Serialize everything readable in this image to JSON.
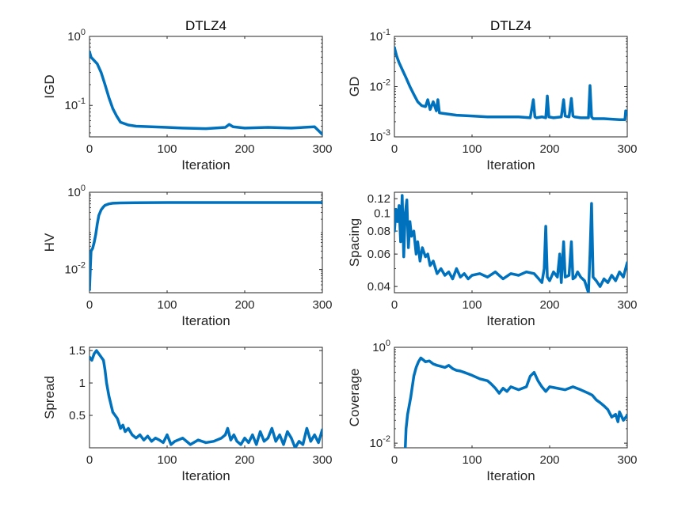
{
  "chart_data": [
    {
      "type": "line",
      "title": "DTLZ4",
      "xlabel": "Iteration",
      "ylabel": "IGD",
      "yscale": "log",
      "xlim": [
        0,
        300
      ],
      "ylim": [
        0.035,
        1.0
      ],
      "x_ticks": [
        0,
        100,
        200,
        300
      ],
      "x_tick_labels": [
        "0",
        "100",
        "200",
        "300"
      ],
      "y_ticks": [
        1.0,
        0.1
      ],
      "y_tick_labels": [
        {
          "base": "10",
          "exp": "0"
        },
        {
          "base": "10",
          "exp": "-1"
        }
      ],
      "line_color": "#0072BD",
      "series": [
        {
          "name": "IGD",
          "x": [
            0,
            2,
            5,
            10,
            15,
            20,
            25,
            30,
            35,
            40,
            50,
            60,
            80,
            100,
            120,
            150,
            175,
            180,
            185,
            200,
            230,
            260,
            290,
            300
          ],
          "values": [
            0.6,
            0.5,
            0.46,
            0.4,
            0.3,
            0.2,
            0.13,
            0.09,
            0.07,
            0.057,
            0.052,
            0.05,
            0.049,
            0.048,
            0.047,
            0.046,
            0.048,
            0.053,
            0.049,
            0.047,
            0.048,
            0.047,
            0.049,
            0.038
          ]
        }
      ]
    },
    {
      "type": "line",
      "title": "DTLZ4",
      "xlabel": "Iteration",
      "ylabel": "GD",
      "yscale": "log",
      "xlim": [
        0,
        300
      ],
      "ylim": [
        0.001,
        0.1
      ],
      "x_ticks": [
        0,
        100,
        200,
        300
      ],
      "x_tick_labels": [
        "0",
        "100",
        "200",
        "300"
      ],
      "y_ticks": [
        0.1,
        0.01,
        0.001
      ],
      "y_tick_labels": [
        {
          "base": "10",
          "exp": "-1"
        },
        {
          "base": "10",
          "exp": "-2"
        },
        {
          "base": "10",
          "exp": "-3"
        }
      ],
      "line_color": "#0072BD",
      "series": [
        {
          "name": "GD",
          "x": [
            0,
            3,
            6,
            10,
            15,
            20,
            25,
            30,
            35,
            40,
            43,
            46,
            50,
            54,
            56,
            58,
            65,
            80,
            100,
            120,
            140,
            160,
            175,
            179,
            181,
            183,
            190,
            195,
            197,
            199,
            205,
            215,
            218,
            220,
            225,
            228,
            230,
            232,
            240,
            250,
            252,
            254,
            256,
            270,
            290,
            297,
            298,
            300
          ],
          "values": [
            0.06,
            0.04,
            0.03,
            0.022,
            0.015,
            0.01,
            0.007,
            0.005,
            0.0042,
            0.004,
            0.0055,
            0.0035,
            0.005,
            0.0033,
            0.0055,
            0.003,
            0.0029,
            0.0027,
            0.0026,
            0.0025,
            0.0025,
            0.0025,
            0.0024,
            0.0055,
            0.0025,
            0.0024,
            0.0025,
            0.0024,
            0.0065,
            0.0025,
            0.0024,
            0.0025,
            0.0055,
            0.0026,
            0.0025,
            0.0058,
            0.0026,
            0.0025,
            0.0024,
            0.0024,
            0.0105,
            0.0025,
            0.0023,
            0.0023,
            0.0022,
            0.0022,
            0.0033,
            0.0028
          ]
        }
      ]
    },
    {
      "type": "line",
      "title": "",
      "xlabel": "Iteration",
      "ylabel": "HV",
      "yscale": "log",
      "xlim": [
        0,
        300
      ],
      "ylim": [
        0.0025,
        1.0
      ],
      "x_ticks": [
        0,
        100,
        200,
        300
      ],
      "x_tick_labels": [
        "0",
        "100",
        "200",
        "300"
      ],
      "y_ticks": [
        1.0,
        0.01
      ],
      "y_tick_labels": [
        {
          "base": "10",
          "exp": "0"
        },
        {
          "base": "10",
          "exp": "-2"
        }
      ],
      "line_color": "#0072BD",
      "series": [
        {
          "name": "HV",
          "x": [
            0,
            1,
            2,
            4,
            6,
            8,
            10,
            12,
            15,
            18,
            20,
            25,
            30,
            40,
            60,
            100,
            150,
            200,
            250,
            300
          ],
          "values": [
            0.003,
            0.01,
            0.03,
            0.035,
            0.05,
            0.08,
            0.15,
            0.25,
            0.35,
            0.42,
            0.46,
            0.5,
            0.52,
            0.53,
            0.535,
            0.54,
            0.54,
            0.54,
            0.54,
            0.54
          ]
        }
      ]
    },
    {
      "type": "line",
      "title": "",
      "xlabel": "Iteration",
      "ylabel": "Spacing",
      "yscale": "log",
      "xlim": [
        0,
        300
      ],
      "ylim": [
        0.037,
        0.13
      ],
      "x_ticks": [
        0,
        100,
        200,
        300
      ],
      "x_tick_labels": [
        "0",
        "100",
        "200",
        "300"
      ],
      "y_ticks": [
        0.12,
        0.1,
        0.08,
        0.06,
        0.04
      ],
      "y_tick_labels": [
        "0.12",
        "0.1",
        "0.08",
        "0.06",
        "0.04"
      ],
      "line_color": "#0072BD",
      "series": [
        {
          "name": "Spacing",
          "x": [
            0,
            2,
            4,
            6,
            8,
            10,
            12,
            14,
            16,
            18,
            20,
            22,
            25,
            28,
            30,
            33,
            36,
            40,
            43,
            46,
            50,
            55,
            60,
            65,
            70,
            75,
            80,
            85,
            90,
            95,
            100,
            110,
            120,
            130,
            140,
            150,
            160,
            170,
            180,
            186,
            190,
            193,
            195,
            197,
            200,
            205,
            210,
            213,
            215,
            218,
            220,
            225,
            228,
            230,
            233,
            236,
            240,
            245,
            250,
            252,
            254,
            256,
            260,
            265,
            270,
            275,
            280,
            285,
            290,
            295,
            300
          ],
          "values": [
            0.08,
            0.105,
            0.09,
            0.11,
            0.07,
            0.125,
            0.058,
            0.1,
            0.118,
            0.065,
            0.09,
            0.075,
            0.08,
            0.06,
            0.07,
            0.055,
            0.065,
            0.058,
            0.06,
            0.052,
            0.055,
            0.047,
            0.05,
            0.046,
            0.048,
            0.044,
            0.05,
            0.045,
            0.047,
            0.044,
            0.046,
            0.047,
            0.045,
            0.048,
            0.044,
            0.047,
            0.046,
            0.048,
            0.047,
            0.044,
            0.042,
            0.05,
            0.085,
            0.045,
            0.043,
            0.048,
            0.045,
            0.06,
            0.042,
            0.07,
            0.045,
            0.046,
            0.07,
            0.044,
            0.045,
            0.048,
            0.045,
            0.043,
            0.037,
            0.06,
            0.113,
            0.045,
            0.043,
            0.04,
            0.044,
            0.042,
            0.046,
            0.043,
            0.048,
            0.045,
            0.054
          ]
        }
      ]
    },
    {
      "type": "line",
      "title": "",
      "xlabel": "Iteration",
      "ylabel": "Spread",
      "yscale": "linear",
      "xlim": [
        0,
        300
      ],
      "ylim": [
        0.0,
        1.55
      ],
      "x_ticks": [
        0,
        100,
        200,
        300
      ],
      "x_tick_labels": [
        "0",
        "100",
        "200",
        "300"
      ],
      "y_ticks": [
        1.5,
        1.0,
        0.5
      ],
      "y_tick_labels": [
        "1.5",
        "1",
        "0.5"
      ],
      "line_color": "#0072BD",
      "series": [
        {
          "name": "Spread",
          "x": [
            0,
            3,
            6,
            9,
            12,
            15,
            18,
            20,
            22,
            25,
            28,
            30,
            33,
            36,
            40,
            43,
            46,
            50,
            55,
            60,
            65,
            70,
            75,
            80,
            85,
            90,
            95,
            100,
            105,
            110,
            120,
            130,
            140,
            150,
            160,
            170,
            175,
            178,
            182,
            186,
            190,
            195,
            200,
            205,
            210,
            215,
            220,
            225,
            230,
            235,
            240,
            245,
            250,
            255,
            260,
            265,
            270,
            275,
            280,
            285,
            290,
            295,
            300
          ],
          "values": [
            1.4,
            1.35,
            1.45,
            1.5,
            1.45,
            1.4,
            1.35,
            1.2,
            1.0,
            0.8,
            0.65,
            0.55,
            0.5,
            0.45,
            0.3,
            0.35,
            0.25,
            0.3,
            0.2,
            0.15,
            0.2,
            0.12,
            0.18,
            0.1,
            0.15,
            0.12,
            0.08,
            0.2,
            0.05,
            0.1,
            0.15,
            0.05,
            0.12,
            0.08,
            0.1,
            0.15,
            0.2,
            0.3,
            0.12,
            0.2,
            0.1,
            0.05,
            0.15,
            0.08,
            0.2,
            0.05,
            0.25,
            0.1,
            0.15,
            0.3,
            0.1,
            0.2,
            0.05,
            0.25,
            0.15,
            0.0,
            0.1,
            0.05,
            0.3,
            0.1,
            0.2,
            0.08,
            0.28
          ]
        }
      ]
    },
    {
      "type": "line",
      "title": "",
      "xlabel": "Iteration",
      "ylabel": "Coverage",
      "yscale": "log",
      "xlim": [
        0,
        300
      ],
      "ylim": [
        0.008,
        1.0
      ],
      "x_ticks": [
        0,
        100,
        200,
        300
      ],
      "x_tick_labels": [
        "0",
        "100",
        "200",
        "300"
      ],
      "y_ticks": [
        1.0,
        0.01
      ],
      "y_tick_labels": [
        {
          "base": "10",
          "exp": "0"
        },
        {
          "base": "10",
          "exp": "-2"
        }
      ],
      "line_color": "#0072BD",
      "series": [
        {
          "name": "Coverage",
          "x": [
            14,
            15,
            17,
            19,
            21,
            23,
            25,
            28,
            31,
            34,
            37,
            40,
            45,
            50,
            55,
            60,
            65,
            70,
            75,
            80,
            85,
            90,
            95,
            100,
            110,
            120,
            125,
            130,
            135,
            140,
            145,
            150,
            160,
            170,
            175,
            180,
            185,
            190,
            195,
            200,
            210,
            220,
            230,
            240,
            250,
            255,
            260,
            265,
            270,
            275,
            280,
            285,
            288,
            290,
            295,
            300
          ],
          "values": [
            0.008,
            0.02,
            0.04,
            0.06,
            0.09,
            0.15,
            0.25,
            0.38,
            0.5,
            0.6,
            0.55,
            0.5,
            0.52,
            0.45,
            0.42,
            0.4,
            0.38,
            0.42,
            0.36,
            0.33,
            0.32,
            0.3,
            0.28,
            0.26,
            0.22,
            0.2,
            0.17,
            0.14,
            0.11,
            0.14,
            0.12,
            0.15,
            0.13,
            0.15,
            0.25,
            0.3,
            0.2,
            0.15,
            0.12,
            0.15,
            0.14,
            0.13,
            0.15,
            0.13,
            0.11,
            0.1,
            0.08,
            0.07,
            0.06,
            0.05,
            0.035,
            0.04,
            0.028,
            0.045,
            0.03,
            0.038
          ]
        }
      ]
    }
  ]
}
